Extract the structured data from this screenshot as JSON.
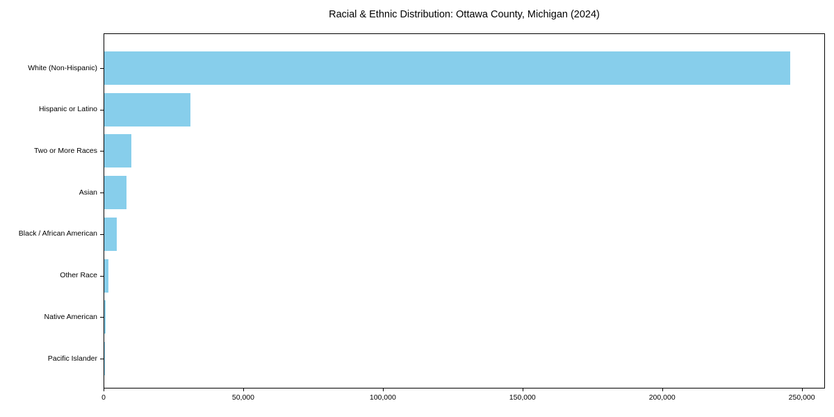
{
  "chart_data": {
    "type": "bar",
    "orientation": "horizontal",
    "title": "Racial & Ethnic Distribution: Ottawa County, Michigan (2024)",
    "categories": [
      "White (Non-Hispanic)",
      "Hispanic or Latino",
      "Two or More Races",
      "Asian",
      "Black / African American",
      "Other Race",
      "Native American",
      "Pacific Islander"
    ],
    "values": [
      246000,
      31000,
      9800,
      7900,
      4400,
      1400,
      500,
      100
    ],
    "xlabel": "",
    "ylabel": "",
    "xlim": [
      0,
      258300
    ],
    "x_ticks": [
      0,
      50000,
      100000,
      150000,
      200000,
      250000
    ],
    "x_tick_labels": [
      "0",
      "50,000",
      "100,000",
      "150,000",
      "200,000",
      "250,000"
    ],
    "bar_color": "#87CEEB",
    "axis_color": "#000000",
    "background_color": "#FFFFFF",
    "grid": false,
    "legend": null
  }
}
